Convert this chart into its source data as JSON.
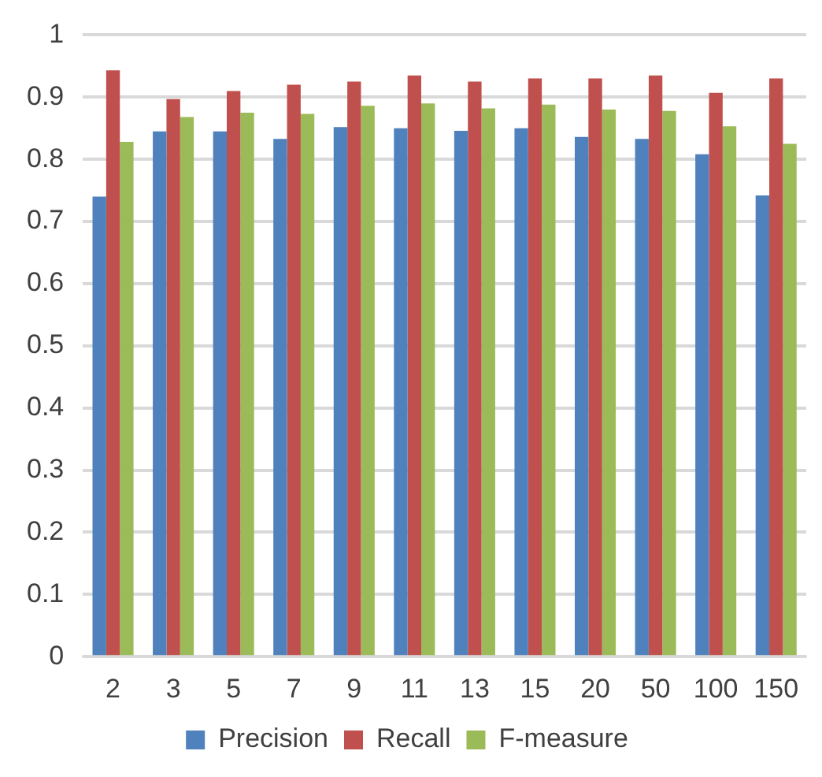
{
  "chart_data": {
    "type": "bar",
    "categories": [
      "2",
      "3",
      "5",
      "7",
      "9",
      "11",
      "13",
      "15",
      "20",
      "50",
      "100",
      "150"
    ],
    "series": [
      {
        "name": "Precision",
        "color": "#4f81bd",
        "values": [
          0.74,
          0.845,
          0.845,
          0.833,
          0.852,
          0.85,
          0.846,
          0.85,
          0.836,
          0.833,
          0.808,
          0.742
        ]
      },
      {
        "name": "Recall",
        "color": "#c0504d",
        "values": [
          0.943,
          0.897,
          0.91,
          0.92,
          0.925,
          0.935,
          0.925,
          0.93,
          0.93,
          0.935,
          0.907,
          0.93
        ]
      },
      {
        "name": "F-measure",
        "color": "#9bbb59",
        "values": [
          0.828,
          0.868,
          0.875,
          0.873,
          0.886,
          0.89,
          0.882,
          0.888,
          0.88,
          0.878,
          0.853,
          0.825
        ]
      }
    ],
    "ylim": [
      0,
      1
    ],
    "yticks": [
      0,
      0.1,
      0.2,
      0.3,
      0.4,
      0.5,
      0.6,
      0.7,
      0.8,
      0.9,
      1
    ],
    "grid": "y",
    "legend": "bottom"
  }
}
